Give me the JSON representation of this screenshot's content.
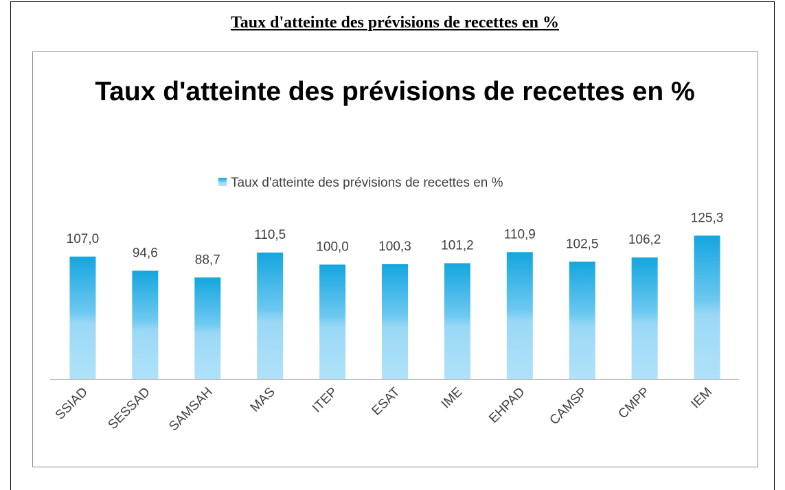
{
  "document_title": "Taux d'atteinte des prévisions de recettes en %",
  "chart_data": {
    "type": "bar",
    "title": "Taux d'atteinte des prévisions de recettes en %",
    "categories": [
      "SSIAD",
      "SESSAD",
      "SAMSAH",
      "MAS",
      "ITEP",
      "ESAT",
      "IME",
      "EHPAD",
      "CAMSP",
      "CMPP",
      "IEM"
    ],
    "series": [
      {
        "name": "Taux d'atteinte des prévisions de recettes en %",
        "color": "#1aa9e1",
        "values": [
          107.0,
          94.6,
          88.7,
          110.5,
          100.0,
          100.3,
          101.2,
          110.9,
          102.5,
          106.2,
          125.3
        ],
        "value_labels": [
          "107,0",
          "94,6",
          "88,7",
          "110,5",
          "100,0",
          "100,3",
          "101,2",
          "110,9",
          "102,5",
          "106,2",
          "125,3"
        ]
      }
    ],
    "ylim": [
      0,
      140
    ],
    "legend": "top"
  }
}
